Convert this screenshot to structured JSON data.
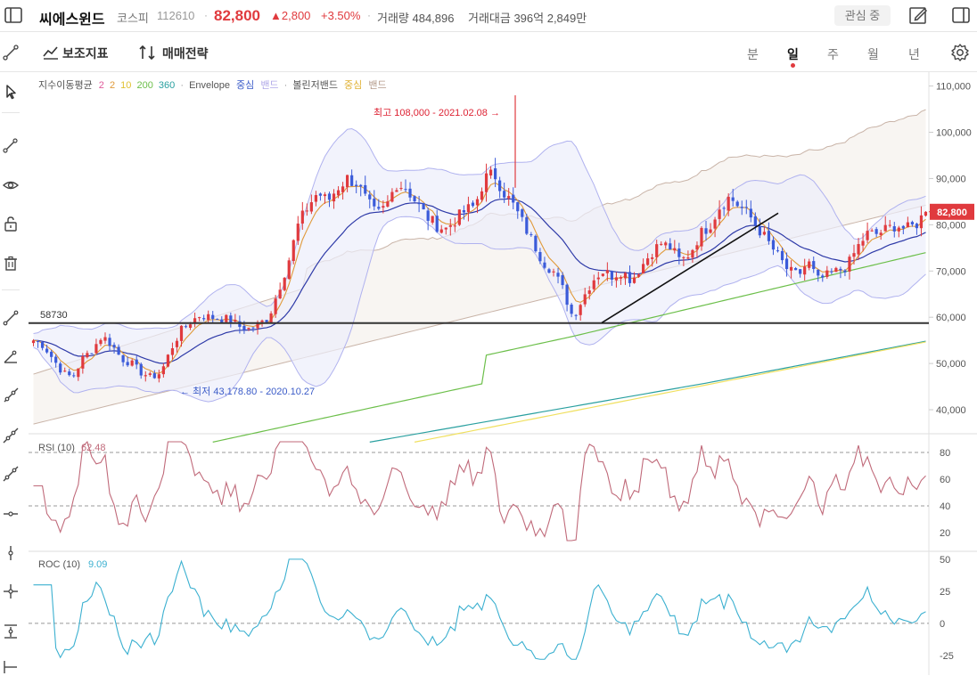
{
  "header": {
    "stock_name": "씨에스윈드",
    "market": "코스피",
    "code": "112610",
    "price": "82,800",
    "change": "▲2,800",
    "change_pct": "+3.50%",
    "volume": "거래량 484,896",
    "amount": "거래대금 396억 2,849만",
    "watch_label": "관심 중"
  },
  "toolbar": {
    "indicators_label": "보조지표",
    "strategy_label": "매매전략",
    "periods": [
      "분",
      "일",
      "주",
      "월",
      "년"
    ],
    "active_period": "일"
  },
  "legend": {
    "ema_label": "지수이동평균",
    "ema_periods": [
      "2",
      "2",
      "10",
      "200",
      "360"
    ],
    "envelope_label": "Envelope",
    "center": "중심",
    "band": "밴드",
    "bollinger_label": "볼린저밴드"
  },
  "colors": {
    "up": "#e03a3e",
    "down": "#3b5bd9",
    "ema2a": "#e05a9a",
    "ema2b": "#e09a3a",
    "ema10": "#e0c030",
    "ema200": "#6cbf4a",
    "ema360": "#2aa0a0",
    "rsi": "#c06a7a",
    "roc": "#3bb0d0"
  },
  "chart_data": {
    "type": "candlestick",
    "price_axis": {
      "ticks": [
        "110,000",
        "100,000",
        "90,000",
        "80,000",
        "70,000",
        "60,000",
        "50,000",
        "40,000"
      ],
      "range": [
        35000,
        113000
      ]
    },
    "current_price_label": "82,800",
    "current_price": 82800,
    "horizontal_line_label": "58730",
    "horizontal_line_value": 58730,
    "high_annotation": "최고 108,000 - 2021.02.08 →",
    "low_annotation": "← 최저 43,178.80 - 2020.10.27",
    "rsi": {
      "label": "RSI (10)",
      "value": "62.48",
      "ticks": [
        "80",
        "60",
        "40",
        "20"
      ],
      "range": [
        10,
        90
      ],
      "guides": [
        80,
        40
      ]
    },
    "roc": {
      "label": "ROC (10)",
      "value": "9.09",
      "ticks": [
        "50",
        "25",
        "0",
        "-25"
      ],
      "range": [
        -32,
        52
      ],
      "guide": 0
    },
    "close_path": [
      55000,
      54000,
      51000,
      48000,
      47000,
      51000,
      53000,
      56000,
      54000,
      51000,
      50000,
      48000,
      47000,
      48000,
      53000,
      57000,
      59000,
      60500,
      60000,
      59800,
      59500,
      58000,
      57500,
      58500,
      60000,
      66000,
      72000,
      80000,
      84000,
      87000,
      85000,
      88000,
      90000,
      89000,
      85000,
      82000,
      84000,
      89000,
      88000,
      85000,
      82000,
      80000,
      79000,
      81000,
      83000,
      84000,
      90000,
      91000,
      87000,
      84000,
      80000,
      76000,
      72000,
      70000,
      66000,
      60000,
      64000,
      68000,
      70000,
      69000,
      70000,
      68000,
      71000,
      74000,
      76000,
      75000,
      72000,
      74000,
      78000,
      80000,
      84000,
      86000,
      84000,
      82000,
      79000,
      76000,
      73000,
      70000,
      69000,
      72000,
      68000,
      69000,
      70000,
      71000,
      75000,
      78000,
      78000,
      79000,
      80000,
      79000,
      80000,
      82800
    ]
  }
}
